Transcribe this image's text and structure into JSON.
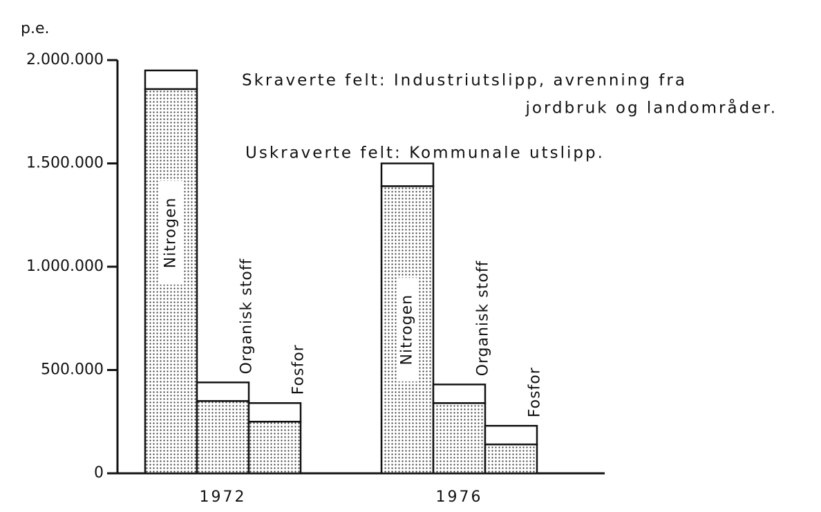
{
  "chart_data": {
    "type": "grouped-stacked-bar",
    "ylabel": "p.e.",
    "categories": [
      "1972",
      "1976"
    ],
    "series": [
      {
        "name": "Nitrogen",
        "shaded": [
          1860000,
          1390000
        ],
        "unshaded": [
          90000,
          110000
        ]
      },
      {
        "name": "Organisk stoff",
        "shaded": [
          350000,
          340000
        ],
        "unshaded": [
          90000,
          90000
        ]
      },
      {
        "name": "Fosfor",
        "shaded": [
          250000,
          140000
        ],
        "unshaded": [
          90000,
          90000
        ]
      }
    ],
    "legend": {
      "shaded": [
        "Skraverte felt:  Industriutslipp, avrenning fra",
        "jordbruk og landområder."
      ],
      "unshaded": "Uskraverte felt:  Kommunale utslipp."
    },
    "ylim": [
      0,
      2000000
    ],
    "yticks": [
      0,
      {
        "value": 500000,
        "label": "500.000"
      },
      {
        "value": 1000000,
        "label": "1.000.000"
      },
      {
        "value": 1500000,
        "label": "1.500.000"
      },
      {
        "value": 2000000,
        "label": "2.000.000"
      }
    ]
  }
}
